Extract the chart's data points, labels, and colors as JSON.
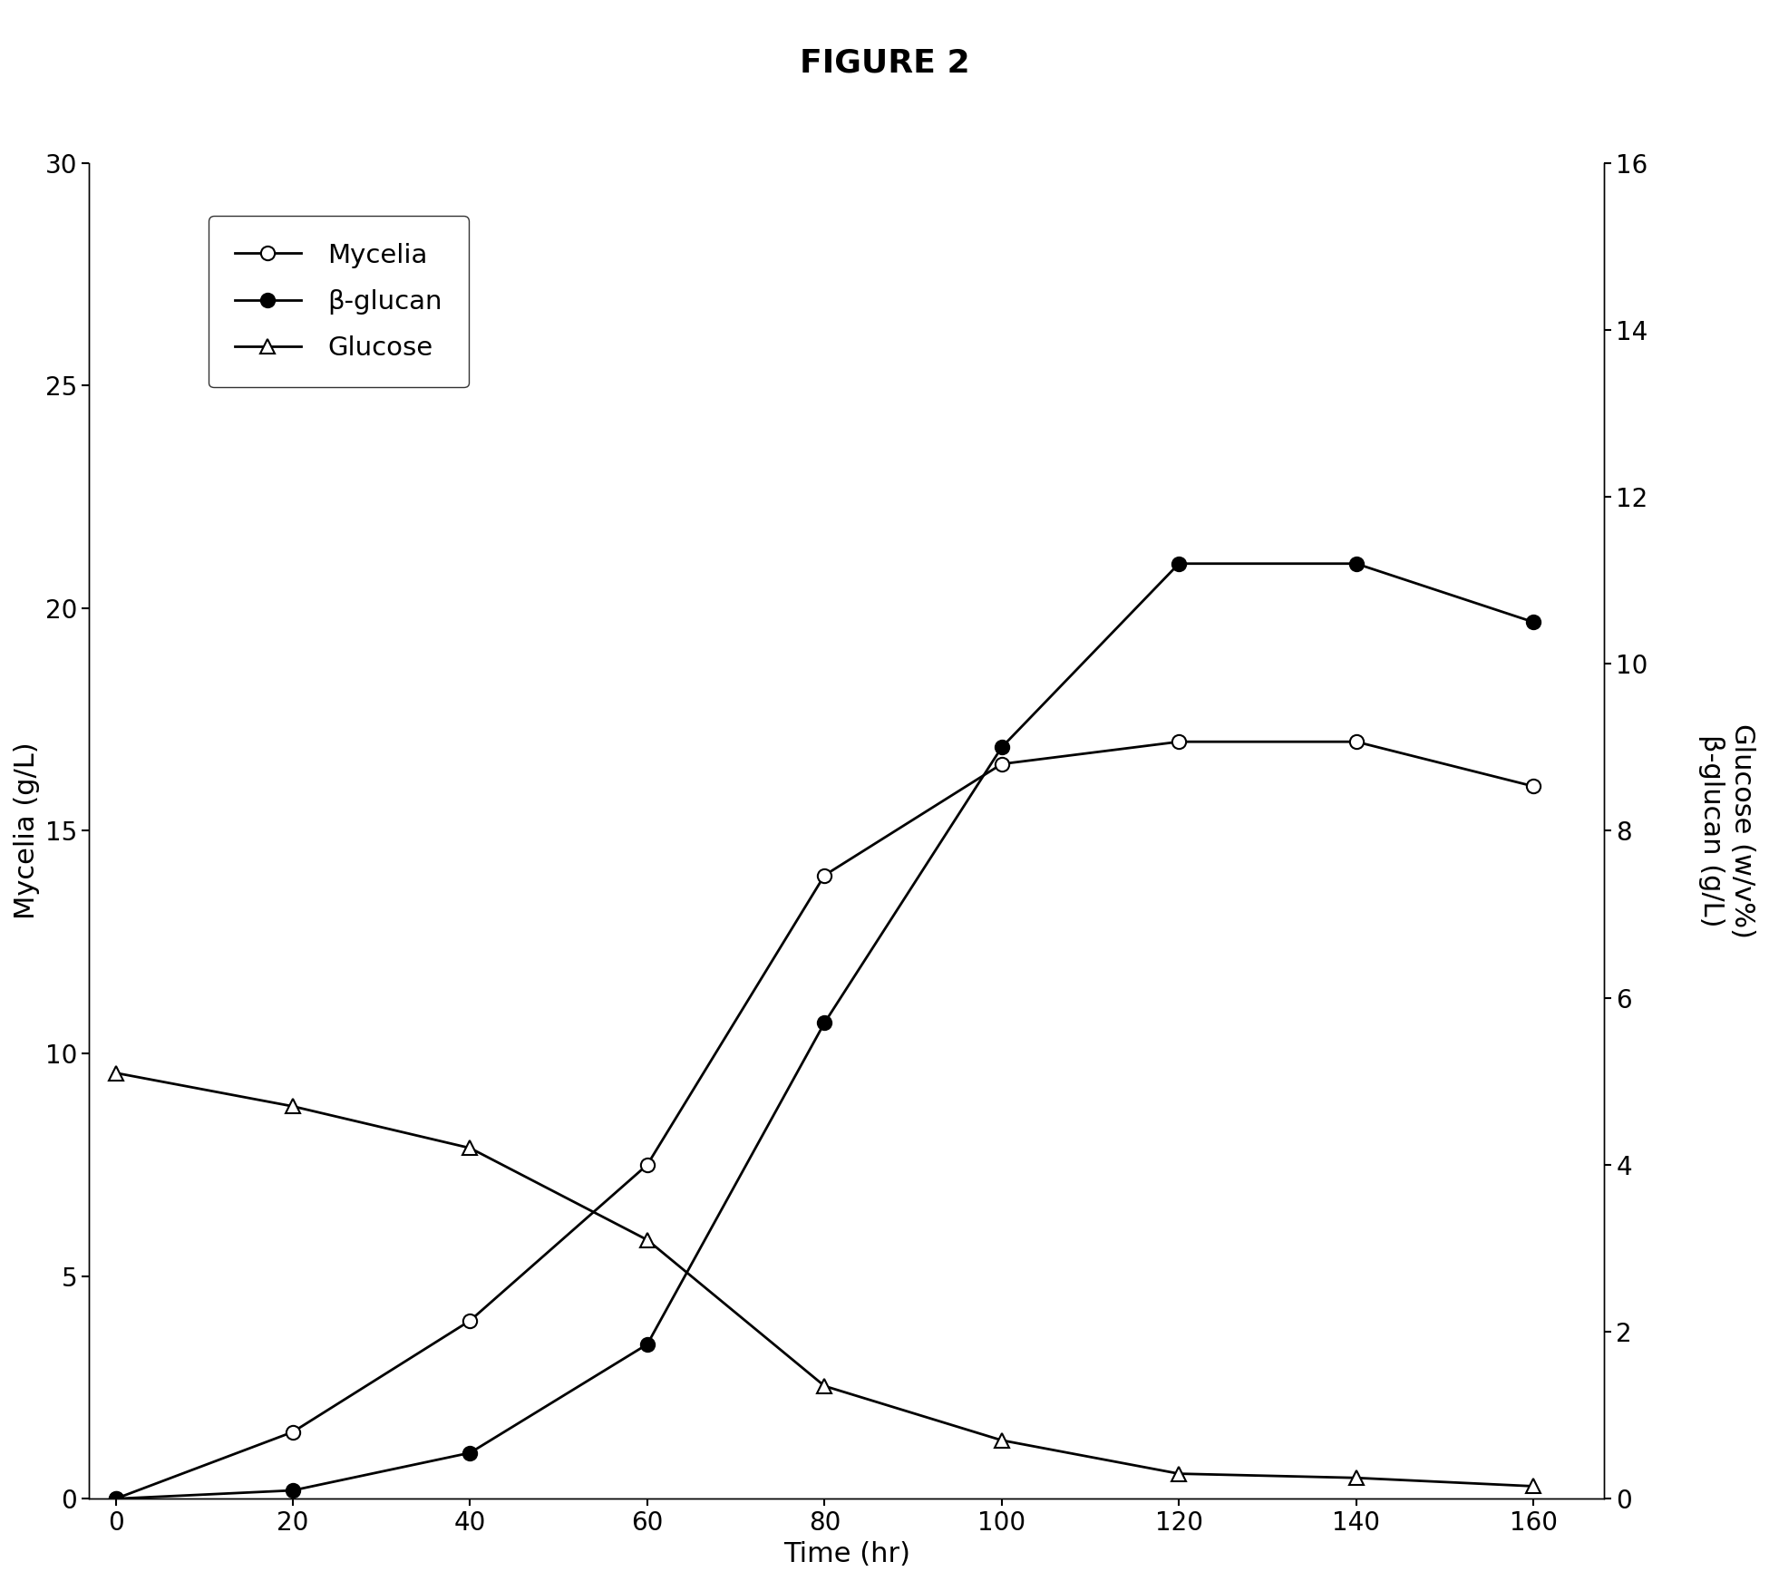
{
  "title": "FIGURE 2",
  "time": [
    0,
    20,
    40,
    60,
    80,
    100,
    120,
    140,
    160
  ],
  "mycelia": [
    0.0,
    1.5,
    4.0,
    7.5,
    14.0,
    16.5,
    17.0,
    17.0,
    16.0
  ],
  "beta_glucan": [
    0.0,
    0.1,
    0.55,
    1.85,
    5.7,
    9.0,
    11.2,
    11.2,
    10.5
  ],
  "glucose": [
    5.1,
    4.7,
    4.2,
    3.1,
    1.35,
    0.7,
    0.3,
    0.25,
    0.15
  ],
  "left_ylabel": "Mycelia (g/L)",
  "right_ylabel": "Glucose (w/v%)\nβ-glucan (g/L)",
  "xlabel": "Time (hr)",
  "left_ylim": [
    0,
    30
  ],
  "right_ylim": [
    0,
    16.0
  ],
  "left_yticks": [
    0,
    5,
    10,
    15,
    20,
    25,
    30
  ],
  "right_yticks": [
    0.0,
    2.0,
    4.0,
    6.0,
    8.0,
    10.0,
    12.0,
    14.0,
    16.0
  ],
  "xticks": [
    0,
    20,
    40,
    60,
    80,
    100,
    120,
    140,
    160
  ],
  "legend_labels": [
    "Mycelia",
    "β-glucan",
    "Glucose"
  ],
  "line_color": "black",
  "background_color": "#ffffff",
  "title_fontsize": 26,
  "label_fontsize": 22,
  "tick_fontsize": 20,
  "legend_fontsize": 21,
  "marker_size": 11,
  "line_width": 2.0
}
